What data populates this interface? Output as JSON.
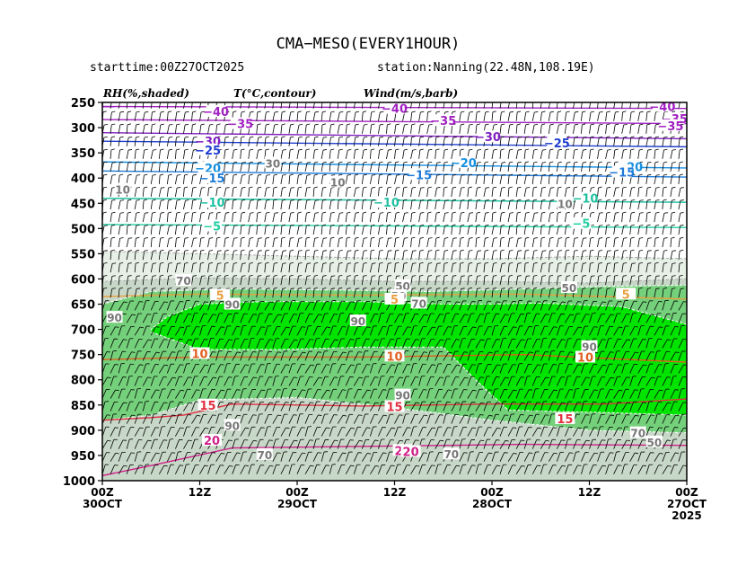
{
  "header": {
    "title": "CMA−MESO(EVERY1HOUR)",
    "starttime": "starttime:00Z27OCT2025",
    "station": "station:Nanning(22.48N,108.19E)",
    "rh_label": "RH(%,shaded)",
    "t_label": "T(°C,contour)",
    "wind_label": "Wind(m/s,barb)"
  },
  "colors": {
    "rh_bands": [
      "#e6f0e6",
      "#c8d8c8",
      "#74d07a",
      "#00e400"
    ],
    "temp_line_colors": {
      "-40": "#a020c0",
      "-35": "#a020c0",
      "-30": "#8020c0",
      "-25": "#2040d0",
      "-20": "#1890e0",
      "-15": "#1e7ad8",
      "-10": "#20c0a0",
      "-5": "#20d0a0",
      "5": "#e8a040",
      "10": "#e06020",
      "15": "#e03040",
      "20": "#d0208a"
    }
  },
  "chart_data": {
    "type": "heatmap",
    "y_axis": {
      "quantity": "pressure",
      "ticks": [
        250,
        300,
        350,
        400,
        450,
        500,
        550,
        600,
        650,
        700,
        750,
        800,
        850,
        900,
        950,
        1000
      ],
      "range": [
        250,
        1000
      ],
      "inverted": true
    },
    "x_axis": {
      "range_hours_forecast": [
        0,
        72
      ],
      "reversed": true,
      "ticks": [
        {
          "line1": "00Z",
          "line2": "30OCT",
          "line3": ""
        },
        {
          "line1": "12Z",
          "line2": "",
          "line3": ""
        },
        {
          "line1": "00Z",
          "line2": "29OCT",
          "line3": ""
        },
        {
          "line1": "12Z",
          "line2": "",
          "line3": ""
        },
        {
          "line1": "00Z",
          "line2": "28OCT",
          "line3": ""
        },
        {
          "line1": "12Z",
          "line2": "",
          "line3": ""
        },
        {
          "line1": "00Z",
          "line2": "27OCT",
          "line3": "2025"
        }
      ]
    },
    "rh_shading": {
      "thresholds": [
        30,
        50,
        70,
        90
      ],
      "layers": [
        {
          "level": 30,
          "top": [
            [
              0,
              560
            ],
            [
              12,
              555
            ],
            [
              24,
              560
            ],
            [
              36,
              560
            ],
            [
              48,
              555
            ],
            [
              60,
              550
            ],
            [
              72,
              545
            ]
          ],
          "bottom": [
            [
              0,
              1000
            ],
            [
              72,
              1000
            ]
          ]
        },
        {
          "level": 50,
          "top": [
            [
              0,
              600
            ],
            [
              12,
              608
            ],
            [
              24,
              605
            ],
            [
              36,
              605
            ],
            [
              48,
              600
            ],
            [
              60,
              598
            ],
            [
              72,
              605
            ]
          ],
          "bottom": [
            [
              0,
              1000
            ],
            [
              72,
              1000
            ]
          ]
        },
        {
          "level": 70,
          "top": [
            [
              0,
              612
            ],
            [
              10,
              615
            ],
            [
              20,
              620
            ],
            [
              32,
              625
            ],
            [
              44,
              622
            ],
            [
              56,
              620
            ],
            [
              66,
              625
            ],
            [
              72,
              650
            ]
          ],
          "bottom": [
            [
              0,
              905
            ],
            [
              12,
              900
            ],
            [
              24,
              880
            ],
            [
              36,
              855
            ],
            [
              48,
              835
            ],
            [
              60,
              840
            ],
            [
              66,
              870
            ],
            [
              72,
              880
            ]
          ]
        },
        {
          "level": 90,
          "top": [
            [
              0,
              690
            ],
            [
              8,
              655
            ],
            [
              18,
              648
            ],
            [
              24,
              650
            ],
            [
              30,
              650
            ],
            [
              40,
              645
            ],
            [
              52,
              645
            ],
            [
              60,
              650
            ],
            [
              64,
              675
            ],
            [
              66,
              700
            ]
          ],
          "bottom": [
            [
              0,
              870
            ],
            [
              10,
              865
            ],
            [
              22,
              860
            ],
            [
              26,
              800
            ],
            [
              30,
              735
            ],
            [
              40,
              735
            ],
            [
              50,
              740
            ],
            [
              60,
              740
            ],
            [
              66,
              705
            ]
          ]
        }
      ],
      "labels": [
        {
          "text": "10",
          "t": 69.5,
          "p": 422
        },
        {
          "text": "30",
          "t": 51,
          "p": 370
        },
        {
          "text": "10",
          "t": 15,
          "p": 450
        },
        {
          "text": "10",
          "t": 43,
          "p": 408
        },
        {
          "text": "70",
          "t": 62,
          "p": 603
        },
        {
          "text": "50",
          "t": 35,
          "p": 613
        },
        {
          "text": "50",
          "t": 35.5,
          "p": 633
        },
        {
          "text": "70",
          "t": 33,
          "p": 648
        },
        {
          "text": "50",
          "t": 14.5,
          "p": 617
        },
        {
          "text": "90",
          "t": 70.5,
          "p": 676
        },
        {
          "text": "90",
          "t": 56,
          "p": 650
        },
        {
          "text": "90",
          "t": 40.5,
          "p": 683
        },
        {
          "text": "90",
          "t": 12,
          "p": 734
        },
        {
          "text": "90",
          "t": 35,
          "p": 830
        },
        {
          "text": "90",
          "t": 56,
          "p": 890
        },
        {
          "text": "70",
          "t": 52,
          "p": 948
        },
        {
          "text": "70",
          "t": 29,
          "p": 947
        },
        {
          "text": "50",
          "t": 4,
          "p": 923
        },
        {
          "text": "70",
          "t": 6,
          "p": 905
        }
      ]
    },
    "temperature": [
      {
        "value": -40,
        "line": [
          [
            0,
            262
          ],
          [
            72,
            258
          ]
        ],
        "labels": [
          {
            "t": 58,
            "p": 268
          },
          {
            "t": 36,
            "p": 262
          },
          {
            "t": 3,
            "p": 258
          }
        ]
      },
      {
        "value": -35,
        "line": [
          [
            0,
            292
          ],
          [
            72,
            284
          ]
        ],
        "labels": [
          {
            "t": 55,
            "p": 292
          },
          {
            "t": 30,
            "p": 286
          },
          {
            "t": 1.5,
            "p": 282
          },
          {
            "t": 2,
            "p": 296
          }
        ]
      },
      {
        "value": -30,
        "line": [
          [
            0,
            322
          ],
          [
            72,
            310
          ]
        ],
        "labels": [
          {
            "t": 59,
            "p": 327
          },
          {
            "t": 24.5,
            "p": 318
          }
        ]
      },
      {
        "value": -25,
        "line": [
          [
            0,
            338
          ],
          [
            72,
            327
          ]
        ],
        "labels": [
          {
            "t": 59,
            "p": 344
          },
          {
            "t": 16,
            "p": 330
          }
        ]
      },
      {
        "value": -20,
        "line": [
          [
            0,
            380
          ],
          [
            72,
            368
          ]
        ],
        "labels": [
          {
            "t": 59,
            "p": 380
          },
          {
            "t": 27.5,
            "p": 369
          },
          {
            "t": 7,
            "p": 377
          }
        ]
      },
      {
        "value": -15,
        "line": [
          [
            0,
            398
          ],
          [
            72,
            386
          ]
        ],
        "labels": [
          {
            "t": 58.5,
            "p": 400
          },
          {
            "t": 33,
            "p": 393
          },
          {
            "t": 8,
            "p": 388
          }
        ]
      },
      {
        "value": -10,
        "line": [
          [
            0,
            448
          ],
          [
            72,
            440
          ]
        ],
        "labels": [
          {
            "t": 58.5,
            "p": 448
          },
          {
            "t": 37,
            "p": 448
          },
          {
            "t": 12.5,
            "p": 440
          }
        ]
      },
      {
        "value": -5,
        "line": [
          [
            0,
            498
          ],
          [
            72,
            492
          ]
        ],
        "labels": [
          {
            "t": 58.5,
            "p": 495
          },
          {
            "t": 13,
            "p": 490
          }
        ]
      },
      {
        "value": 5,
        "line": [
          [
            0,
            640
          ],
          [
            20,
            630
          ],
          [
            40,
            632
          ],
          [
            60,
            630
          ],
          [
            72,
            635
          ]
        ],
        "labels": [
          {
            "t": 57.5,
            "p": 632
          },
          {
            "t": 36,
            "p": 640
          },
          {
            "t": 7.5,
            "p": 630
          }
        ]
      },
      {
        "value": 10,
        "line": [
          [
            0,
            765
          ],
          [
            20,
            750
          ],
          [
            40,
            755
          ],
          [
            60,
            755
          ],
          [
            72,
            760
          ]
        ],
        "labels": [
          {
            "t": 60,
            "p": 748
          },
          {
            "t": 36,
            "p": 753
          },
          {
            "t": 12.5,
            "p": 755
          }
        ]
      },
      {
        "value": 15,
        "line": [
          [
            0,
            838
          ],
          [
            10,
            848
          ],
          [
            24,
            848
          ],
          [
            40,
            852
          ],
          [
            56,
            848
          ],
          [
            62,
            870
          ],
          [
            66,
            875
          ],
          [
            72,
            880
          ]
        ],
        "labels": [
          {
            "t": 59,
            "p": 850
          },
          {
            "t": 36,
            "p": 853
          },
          {
            "t": 15,
            "p": 877
          }
        ]
      },
      {
        "value": 20,
        "line": [
          [
            0,
            930
          ],
          [
            20,
            928
          ],
          [
            40,
            932
          ],
          [
            56,
            935
          ],
          [
            66,
            970
          ],
          [
            72,
            990
          ]
        ],
        "labels": [
          {
            "t": 58.5,
            "p": 920
          },
          {
            "t": 35,
            "p": 940
          },
          {
            "t": 34,
            "p": 942
          }
        ]
      }
    ],
    "wind": {
      "column_spacing_h": 1,
      "note": "barbs at each hour and each 25 hPa level"
    }
  }
}
